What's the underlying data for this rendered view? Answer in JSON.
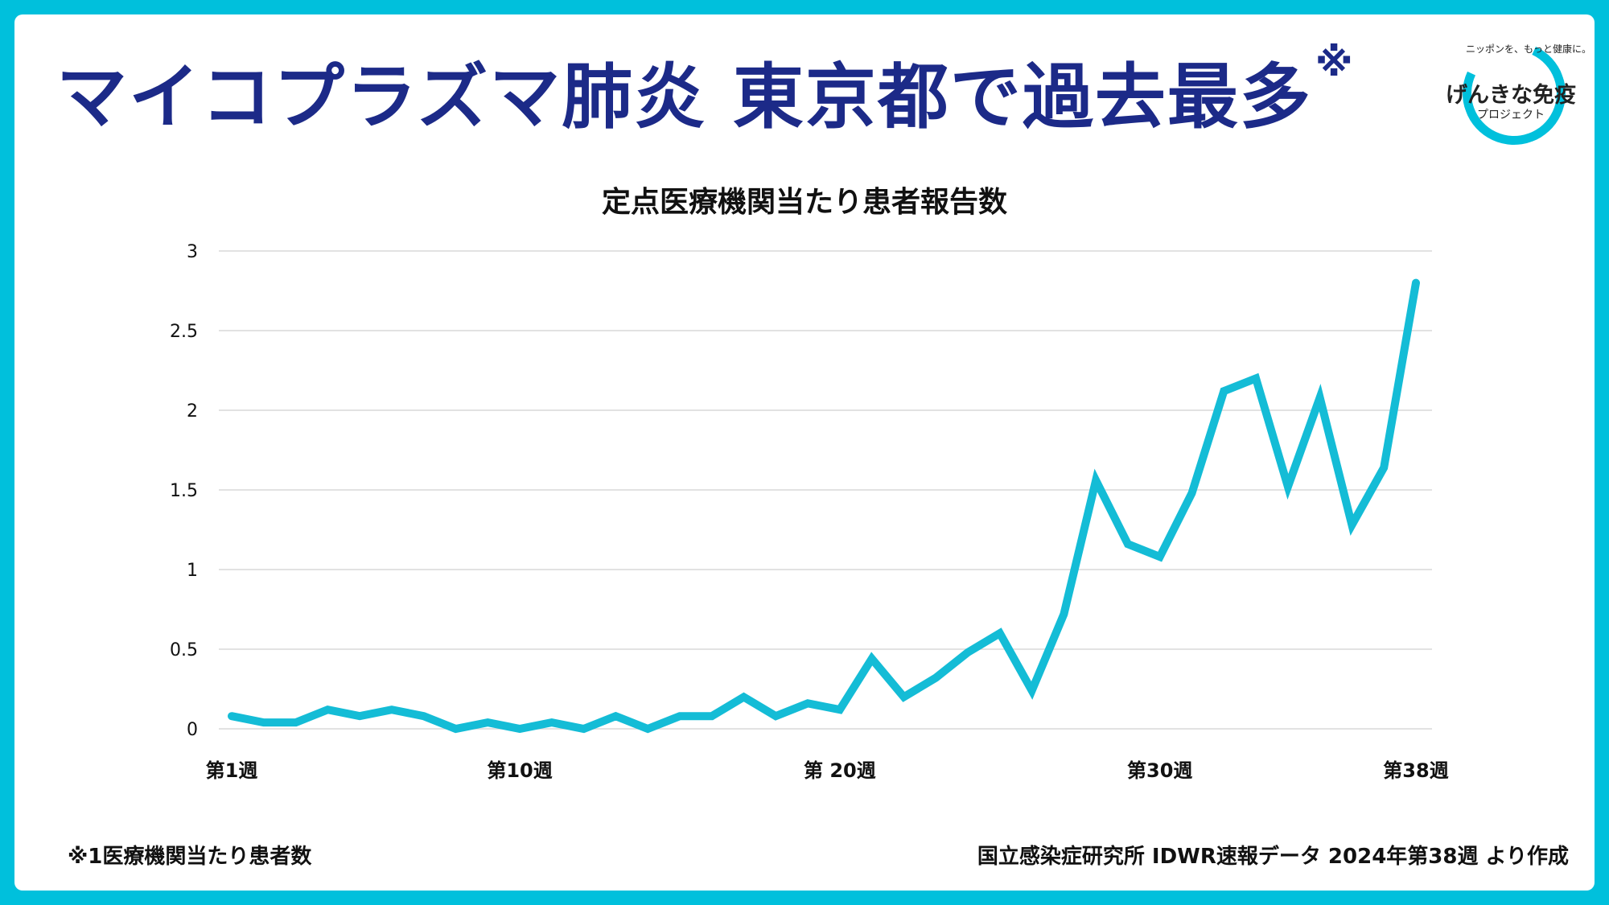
{
  "header": {
    "title": "マイコプラズマ肺炎 東京都で過去最多",
    "title_mark": "※"
  },
  "logo": {
    "tagline": "ニッポンを、もっと健康に。",
    "name": "げんきな免疫",
    "sub": "プロジェクト"
  },
  "footer": {
    "note": "※1医療機関当たり患者数",
    "source": "国立感染症研究所 IDWR速報データ 2024年第38週 より作成"
  },
  "colors": {
    "background": "#00c0dc",
    "line": "#14bcd6",
    "title": "#1c2a88",
    "grid": "#d9d9d9"
  },
  "chart_data": {
    "type": "line",
    "title": "定点医療機関当たり患者報告数",
    "x": [
      1,
      2,
      3,
      4,
      5,
      6,
      7,
      8,
      9,
      10,
      11,
      12,
      13,
      14,
      15,
      16,
      17,
      18,
      19,
      20,
      21,
      22,
      23,
      24,
      25,
      26,
      27,
      28,
      29,
      30,
      31,
      32,
      33,
      34,
      35,
      36,
      37,
      38
    ],
    "values": [
      0.08,
      0.04,
      0.04,
      0.12,
      0.08,
      0.12,
      0.08,
      0.0,
      0.04,
      0.0,
      0.04,
      0.0,
      0.08,
      0.0,
      0.08,
      0.08,
      0.2,
      0.08,
      0.16,
      0.12,
      0.44,
      0.2,
      0.32,
      0.48,
      0.6,
      0.24,
      0.72,
      1.56,
      1.16,
      1.08,
      1.48,
      2.12,
      2.2,
      1.52,
      2.08,
      1.28,
      1.64,
      2.8
    ],
    "xticks": [
      {
        "x": 1,
        "label": "第1週"
      },
      {
        "x": 10,
        "label": "第10週"
      },
      {
        "x": 20,
        "label": "第 20週"
      },
      {
        "x": 30,
        "label": "第30週"
      },
      {
        "x": 38,
        "label": "第38週"
      }
    ],
    "yticks": [
      {
        "v": 0,
        "label": "0"
      },
      {
        "v": 0.5,
        "label": "0.5"
      },
      {
        "v": 1,
        "label": "1"
      },
      {
        "v": 1.5,
        "label": "1.5"
      },
      {
        "v": 2,
        "label": "2"
      },
      {
        "v": 2.5,
        "label": "2.5"
      },
      {
        "v": 3,
        "label": "3"
      }
    ],
    "ylim": [
      0,
      3
    ],
    "grid": true,
    "legend": "none"
  }
}
